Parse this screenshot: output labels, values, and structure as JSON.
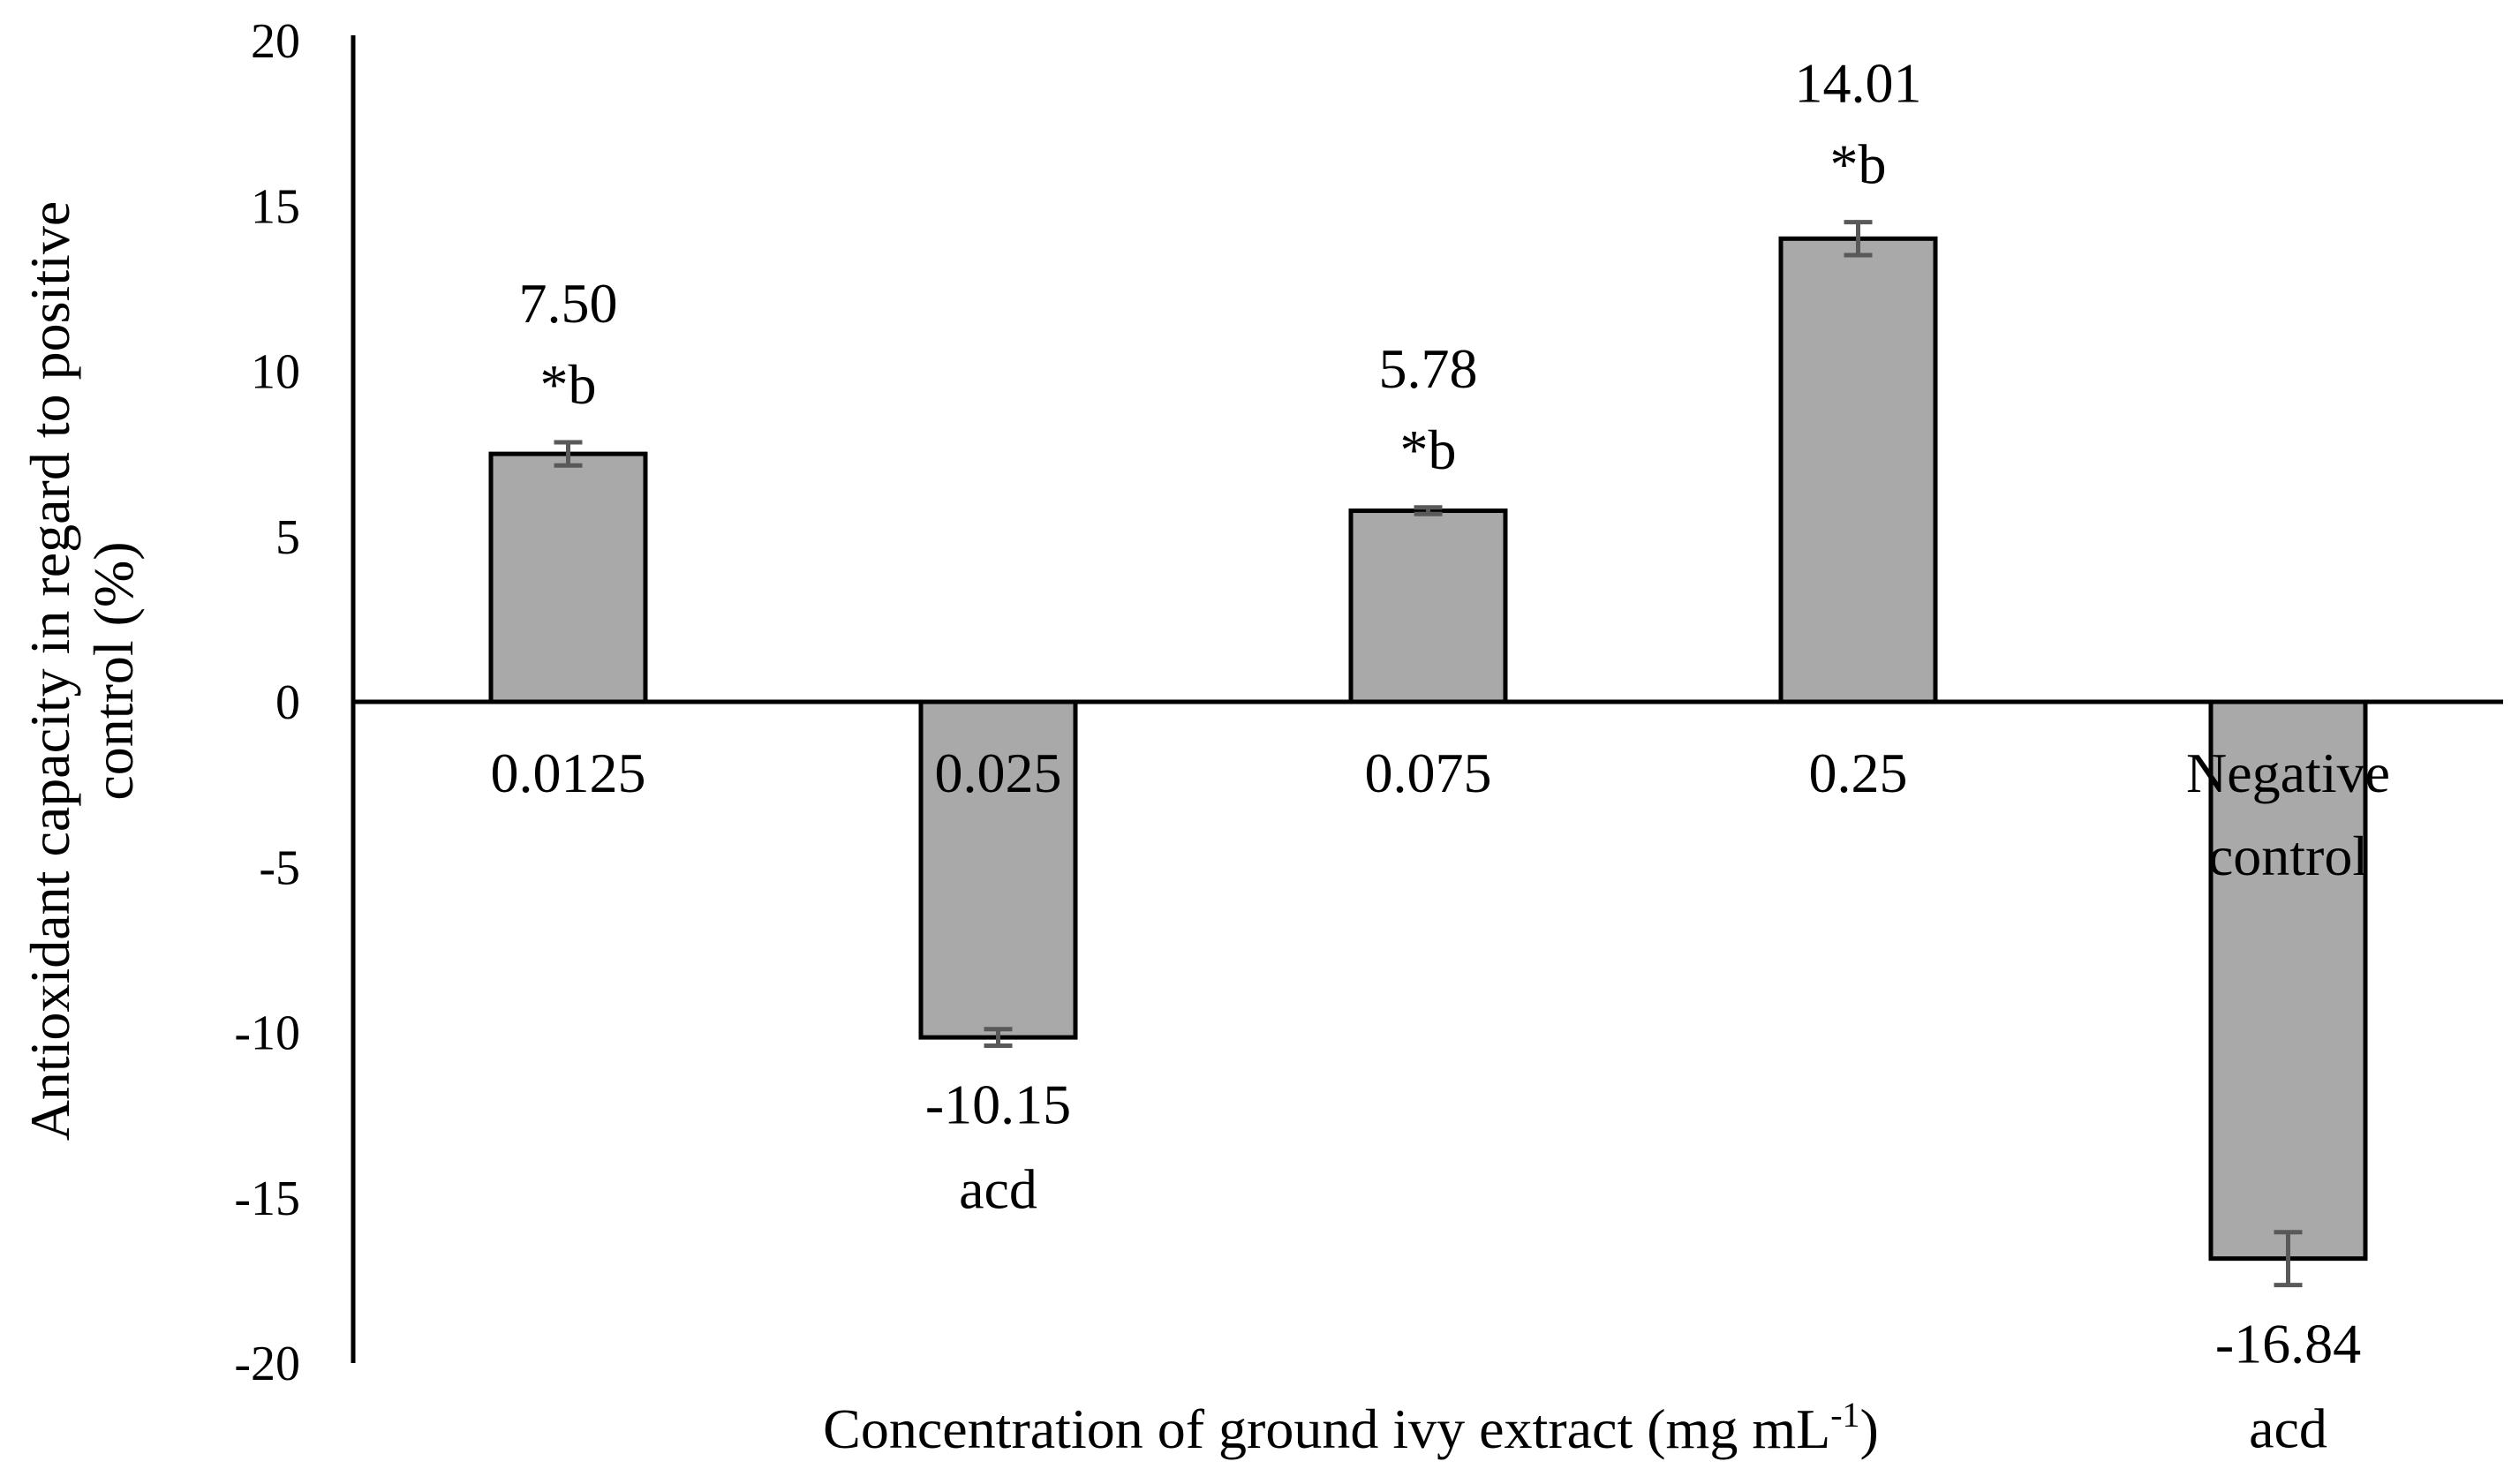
{
  "chart_data": {
    "type": "bar",
    "title": "",
    "xlabel": "Concentration of ground ivy extract (mg mL",
    "xlabel_sup": "-1",
    "xlabel_tail": ")",
    "ylabel_line1": "Antioxidant capacity in regard to positive",
    "ylabel_line2": "control (%)",
    "ylim": [
      -20,
      20
    ],
    "yticks": [
      20,
      15,
      10,
      5,
      0,
      -5,
      -10,
      -15,
      -20
    ],
    "categories": [
      {
        "line1": "0.0125",
        "line2": ""
      },
      {
        "line1": "0.025",
        "line2": ""
      },
      {
        "line1": "0.075",
        "line2": ""
      },
      {
        "line1": "0.25",
        "line2": ""
      },
      {
        "line1": "Negative",
        "line2": "control"
      }
    ],
    "values": [
      7.5,
      -10.15,
      5.78,
      14.01,
      -16.84
    ],
    "errors": [
      0.35,
      0.25,
      0.1,
      0.5,
      0.8
    ],
    "value_labels": [
      "7.50",
      "-10.15",
      "5.78",
      "14.01",
      "-16.84"
    ],
    "sig_labels": [
      "*b",
      "acd",
      "*b",
      "*b",
      "acd"
    ],
    "bar_color": "#a9a9a9",
    "error_color": "#595959",
    "grid": false,
    "legend": "none"
  }
}
